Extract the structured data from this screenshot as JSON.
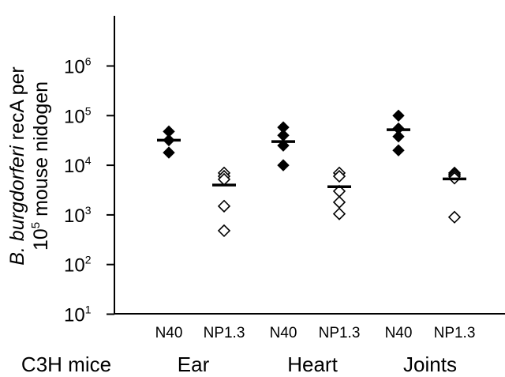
{
  "chart_data": {
    "type": "scatter",
    "title": "",
    "yscale": "log",
    "ylim": [
      1,
      1000000
    ],
    "y_tick_bases": [
      "10",
      "10",
      "10",
      "10",
      "10",
      "10"
    ],
    "y_tick_exponents": [
      "1",
      "2",
      "3",
      "4",
      "5",
      "6"
    ],
    "ylabel_italic": "B. burgdorferi",
    "ylabel_rest": " recA per",
    "ylabel_line2_base": "10",
    "ylabel_line2_exp": "5",
    "ylabel_line2_rest": " mouse nidogen",
    "categories": [
      "N40",
      "NP1.3",
      "N40",
      "NP1.3",
      "N40",
      "NP1.3"
    ],
    "group_title": "C3H mice",
    "groups": [
      "Ear",
      "Heart",
      "Joints"
    ],
    "series": [
      {
        "category": "N40",
        "group": "Ear",
        "marker": "filled-diamond",
        "values": [
          48000,
          32000,
          18000
        ],
        "mean": 32000
      },
      {
        "category": "NP1.3",
        "group": "Ear",
        "marker": "open-diamond",
        "values": [
          7000,
          6000,
          5200,
          1500,
          480
        ],
        "mean": 4000
      },
      {
        "category": "N40",
        "group": "Heart",
        "marker": "filled-diamond",
        "values": [
          58000,
          40000,
          25000,
          10000
        ],
        "mean": 30000
      },
      {
        "category": "NP1.3",
        "group": "Heart",
        "marker": "open-diamond",
        "values": [
          7000,
          6000,
          3000,
          1800,
          1050
        ],
        "mean": 3700
      },
      {
        "category": "N40",
        "group": "Joints",
        "marker": "filled-diamond",
        "values": [
          100000,
          55000,
          38000,
          20000
        ],
        "mean": 52000
      },
      {
        "category": "NP1.3",
        "group": "Joints",
        "marker": "open-diamond",
        "values": [
          7000,
          6500,
          6000,
          5500,
          900
        ],
        "mean": 5300
      }
    ]
  }
}
